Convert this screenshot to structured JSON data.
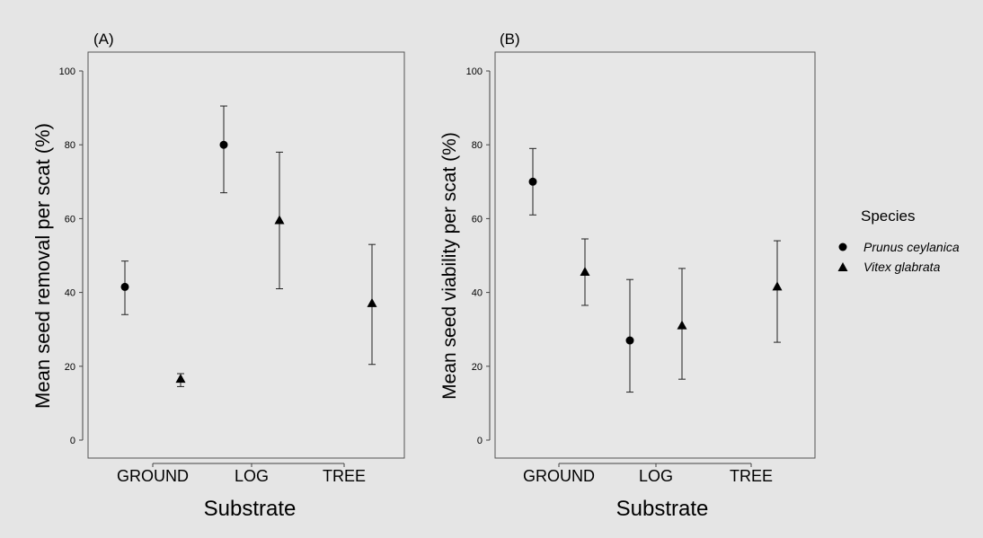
{
  "colors": {
    "figure_bg": "#e5e5e5",
    "panel_bg": "#e7e7e7",
    "frame": "#555555",
    "marker": "#000000"
  },
  "legend": {
    "title": "Species",
    "placement": "right",
    "items": [
      {
        "label": "Prunus ceylanica",
        "shape": "circle"
      },
      {
        "label": "Vitex glabrata",
        "shape": "triangle"
      }
    ]
  },
  "chart_data": [
    {
      "type": "scatter",
      "panel_label": "(A)",
      "xlabel": "Substrate",
      "ylabel": "Mean seed removal per scat (%)",
      "categories": [
        "GROUND",
        "LOG",
        "TREE"
      ],
      "ylim": [
        0,
        100
      ],
      "yticks": [
        "0",
        "20",
        "40",
        "60",
        "80",
        "100"
      ],
      "grid": false,
      "series": [
        {
          "name": "Prunus ceylanica",
          "marker": "circle",
          "points": [
            {
              "x": "GROUND",
              "y": 41.5,
              "lo": 34,
              "hi": 48.5
            },
            {
              "x": "LOG",
              "y": 80,
              "lo": 67,
              "hi": 90.5
            }
          ]
        },
        {
          "name": "Vitex glabrata",
          "marker": "triangle",
          "points": [
            {
              "x": "GROUND",
              "y": 16.5,
              "lo": 14.5,
              "hi": 18
            },
            {
              "x": "LOG",
              "y": 59.5,
              "lo": 41,
              "hi": 78
            },
            {
              "x": "TREE",
              "y": 37,
              "lo": 20.5,
              "hi": 53
            }
          ]
        }
      ]
    },
    {
      "type": "scatter",
      "panel_label": "(B)",
      "xlabel": "Substrate",
      "ylabel": "Mean seed viability per scat (%)",
      "categories": [
        "GROUND",
        "LOG",
        "TREE"
      ],
      "ylim": [
        0,
        100
      ],
      "yticks": [
        "0",
        "20",
        "40",
        "60",
        "80",
        "100"
      ],
      "grid": false,
      "series": [
        {
          "name": "Prunus ceylanica",
          "marker": "circle",
          "points": [
            {
              "x": "GROUND",
              "y": 70,
              "lo": 61,
              "hi": 79
            },
            {
              "x": "LOG",
              "y": 27,
              "lo": 13,
              "hi": 43.5
            }
          ]
        },
        {
          "name": "Vitex glabrata",
          "marker": "triangle",
          "points": [
            {
              "x": "GROUND",
              "y": 45.5,
              "lo": 36.5,
              "hi": 54.5
            },
            {
              "x": "LOG",
              "y": 31,
              "lo": 16.5,
              "hi": 46.5
            },
            {
              "x": "TREE",
              "y": 41.5,
              "lo": 26.5,
              "hi": 54
            }
          ]
        }
      ]
    }
  ]
}
